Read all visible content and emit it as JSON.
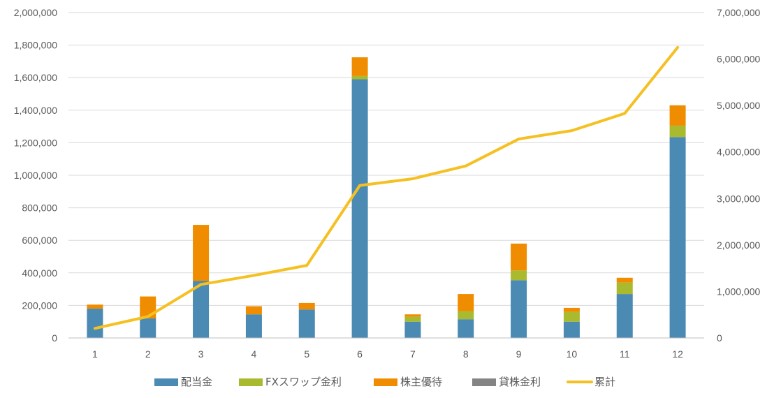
{
  "chart_data": {
    "type": "bar",
    "stacked": true,
    "categories": [
      "1",
      "2",
      "3",
      "4",
      "5",
      "6",
      "7",
      "8",
      "9",
      "10",
      "11",
      "12"
    ],
    "series": [
      {
        "name": "配当金",
        "color": "#4A8AB3",
        "values": [
          180000,
          120000,
          350000,
          145000,
          175000,
          1590000,
          100000,
          115000,
          355000,
          100000,
          270000,
          1235000
        ]
      },
      {
        "name": "FXスワップ金利",
        "color": "#A9BA2F",
        "values": [
          0,
          0,
          0,
          0,
          0,
          20000,
          30000,
          50000,
          60000,
          60000,
          70000,
          70000
        ]
      },
      {
        "name": "株主優待",
        "color": "#F08C00",
        "values": [
          25000,
          135000,
          345000,
          50000,
          40000,
          115000,
          15000,
          105000,
          165000,
          25000,
          30000,
          125000
        ]
      },
      {
        "name": "貸株金利",
        "color": "#848484",
        "values": [
          0,
          0,
          0,
          0,
          0,
          0,
          0,
          0,
          0,
          0,
          0,
          0
        ]
      }
    ],
    "line_series": {
      "name": "累計",
      "color": "#F5C022",
      "axis": "right",
      "values": [
        205000,
        460000,
        1150000,
        1345000,
        1560000,
        3280000,
        3425000,
        3700000,
        4280000,
        4460000,
        4830000,
        6250000
      ]
    },
    "ylim_left": [
      0,
      2000000
    ],
    "ylim_right": [
      0,
      7000000
    ],
    "left_ticks": [
      "0",
      "200,000",
      "400,000",
      "600,000",
      "800,000",
      "1,000,000",
      "1,200,000",
      "1,400,000",
      "1,600,000",
      "1,800,000",
      "2,000,000"
    ],
    "right_ticks": [
      "0",
      "1,000,000",
      "2,000,000",
      "3,000,000",
      "4,000,000",
      "5,000,000",
      "6,000,000",
      "7,000,000"
    ],
    "legend_position": "bottom",
    "grid": true
  }
}
